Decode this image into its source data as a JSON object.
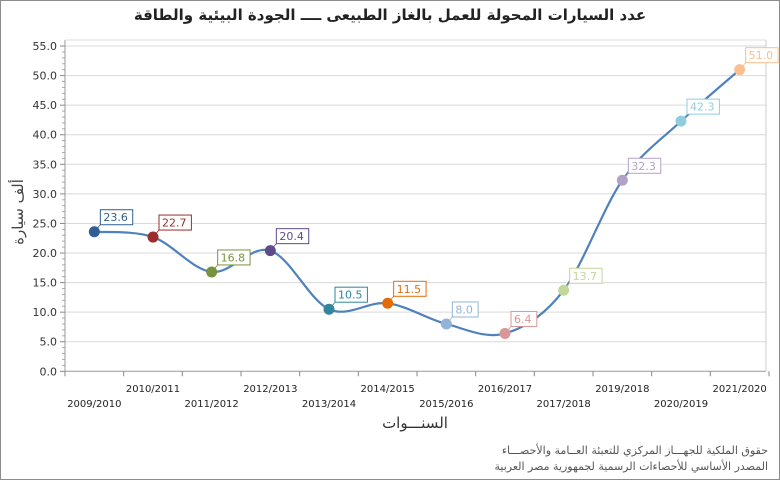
{
  "chart_data": {
    "type": "line",
    "title": "عدد السيارات المحولة للعمل بالغاز الطبيعى ــــ  الجودة البيئية والطاقة",
    "xlabel": "السنـــوات",
    "ylabel": "ألف سيارة",
    "categories": [
      "2009/2010",
      "2010/2011",
      "2011/2012",
      "2012/2013",
      "2013/2014",
      "2014/2015",
      "2015/2016",
      "2016/2017",
      "2017/2018",
      "2018/2019",
      "2019/2020",
      "2020/2021"
    ],
    "category_labels": [
      "2009/2010",
      "2010/2011",
      "2011/2012",
      "2012/2013",
      "2013/2014",
      "2014/2015",
      "2015/2016",
      "2016/2017",
      "2017/2018",
      "2019/2018",
      "2020/2019",
      "2021/2020"
    ],
    "values": [
      23.6,
      22.7,
      16.8,
      20.4,
      10.5,
      11.5,
      8.0,
      6.4,
      13.7,
      32.3,
      42.3,
      51.0
    ],
    "point_colors": [
      "#2f5f93",
      "#9b2d2d",
      "#77933c",
      "#5f4a8b",
      "#31859c",
      "#e36c09",
      "#95b3d7",
      "#d99694",
      "#c3d69b",
      "#b3a2c7",
      "#93cddd",
      "#fac090"
    ],
    "line_color": "#4f81bd",
    "ylim": [
      0,
      55
    ],
    "yticks": [
      "0.0",
      "5.0",
      "10.0",
      "15.0",
      "20.0",
      "25.0",
      "30.0",
      "35.0",
      "40.0",
      "45.0",
      "50.0",
      "55.0"
    ],
    "grid": true,
    "smooth": true,
    "data_labels": true
  },
  "footer": {
    "rights": "حقوق الملكية للجهـــاز المركزي للتعبئة العــامة والأحصـــاء",
    "source": "المصدر الأساسي للأحصاءات الرسمية لجمهورية مصر العربية"
  }
}
